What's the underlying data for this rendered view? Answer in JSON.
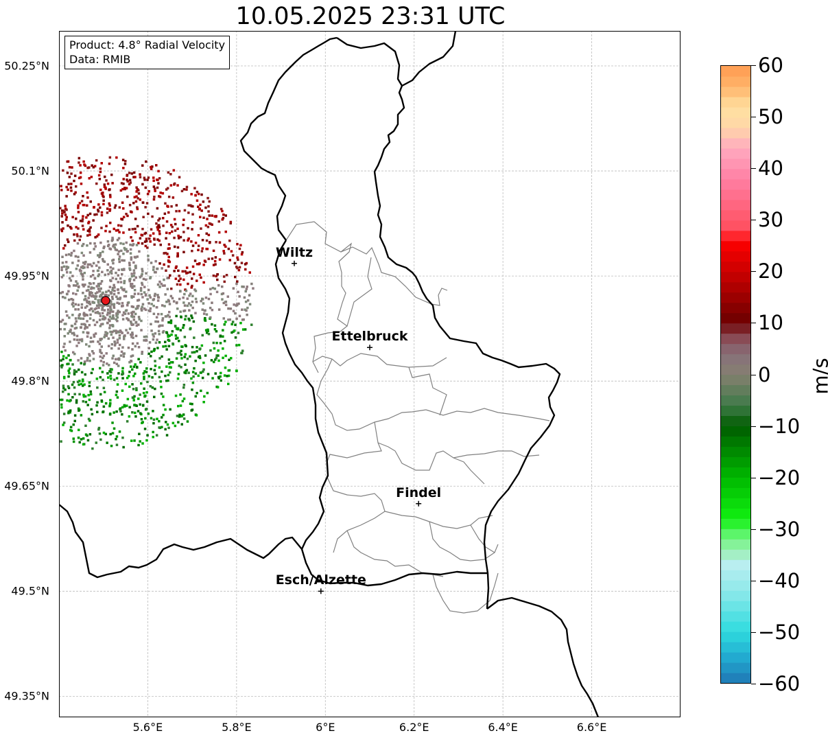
{
  "title": "10.05.2025 23:31 UTC",
  "info_box": {
    "product": "Product: 4.8° Radial Velocity",
    "data": "Data: RMIB"
  },
  "map": {
    "lon_range": [
      5.4,
      6.8
    ],
    "lat_range": [
      49.32,
      50.3
    ],
    "lat_ticks": [
      {
        "value": 50.25,
        "label": "50.25°N"
      },
      {
        "value": 50.1,
        "label": "50.1°N"
      },
      {
        "value": 49.95,
        "label": "49.95°N"
      },
      {
        "value": 49.8,
        "label": "49.8°N"
      },
      {
        "value": 49.65,
        "label": "49.65°N"
      },
      {
        "value": 49.5,
        "label": "49.5°N"
      },
      {
        "value": 49.35,
        "label": "49.35°N"
      }
    ],
    "lon_ticks": [
      {
        "value": 5.6,
        "label": "5.6°E"
      },
      {
        "value": 5.8,
        "label": "5.8°E"
      },
      {
        "value": 6.0,
        "label": "6°E"
      },
      {
        "value": 6.2,
        "label": "6.2°E"
      },
      {
        "value": 6.4,
        "label": "6.4°E"
      },
      {
        "value": 6.6,
        "label": "6.6°E"
      }
    ],
    "grid": true,
    "cities": [
      {
        "name": "Wiltz",
        "lon": 5.93,
        "lat": 49.968
      },
      {
        "name": "Ettelbruck",
        "lon": 6.1,
        "lat": 49.848
      },
      {
        "name": "Findel",
        "lon": 6.21,
        "lat": 49.625
      },
      {
        "name": "Esch/Alzette",
        "lon": 5.99,
        "lat": 49.5
      }
    ],
    "radar_site": {
      "lon": 5.505,
      "lat": 49.915,
      "color": "#e8171b"
    }
  },
  "colorbar": {
    "unit": "m/s",
    "min": -60,
    "max": 60,
    "ticks": [
      {
        "value": 60,
        "label": "60"
      },
      {
        "value": 50,
        "label": "50"
      },
      {
        "value": 40,
        "label": "40"
      },
      {
        "value": 30,
        "label": "30"
      },
      {
        "value": 20,
        "label": "20"
      },
      {
        "value": 10,
        "label": "10"
      },
      {
        "value": 0,
        "label": "0"
      },
      {
        "value": -10,
        "label": "−10"
      },
      {
        "value": -20,
        "label": "−20"
      },
      {
        "value": -30,
        "label": "−30"
      },
      {
        "value": -40,
        "label": "−40"
      },
      {
        "value": -50,
        "label": "−50"
      },
      {
        "value": -60,
        "label": "−60"
      }
    ]
  }
}
